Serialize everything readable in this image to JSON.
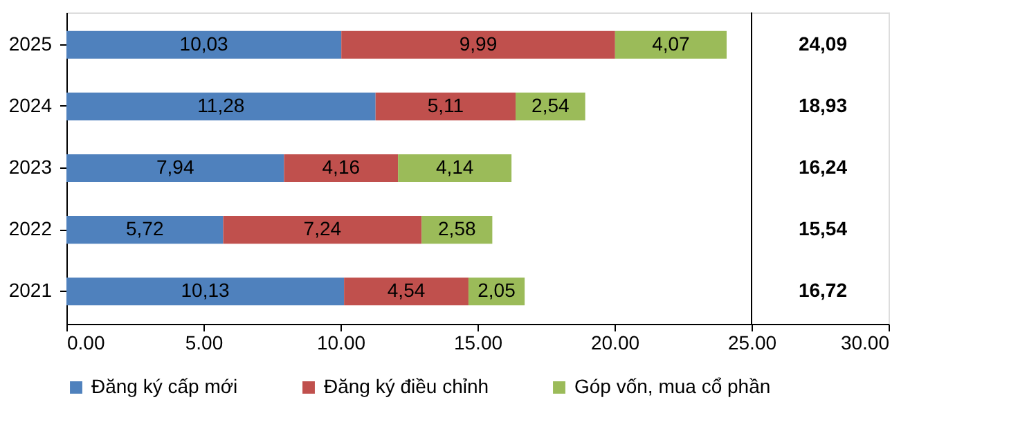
{
  "chart_data": {
    "type": "bar",
    "orientation": "horizontal",
    "stacked": true,
    "categories": [
      "2025",
      "2024",
      "2023",
      "2022",
      "2021"
    ],
    "series": [
      {
        "name": "Đăng  ký cấp mới",
        "color": "#4f81bd",
        "values": [
          10.03,
          11.28,
          7.94,
          5.72,
          10.13
        ],
        "value_labels": [
          "10,03",
          "11,28",
          "7,94",
          "5,72",
          "10,13"
        ]
      },
      {
        "name": "Đăng  ký điều chỉnh",
        "color": "#c0504d",
        "values": [
          9.99,
          5.11,
          4.16,
          7.24,
          4.54
        ],
        "value_labels": [
          "9,99",
          "5,11",
          "4,16",
          "7,24",
          "4,54"
        ]
      },
      {
        "name": "Góp vốn, mua cổ phần",
        "color": "#9bbb59",
        "values": [
          4.07,
          2.54,
          4.14,
          2.58,
          2.05
        ],
        "value_labels": [
          "4,07",
          "2,54",
          "4,14",
          "2,58",
          "2,05"
        ]
      }
    ],
    "annotations": [
      "24,09",
      "18,93",
      "16,24",
      "15,54",
      "16,72"
    ],
    "xlim": [
      0,
      30
    ],
    "xticks": [
      {
        "value": 0,
        "label": "0.00"
      },
      {
        "value": 5,
        "label": "5.00"
      },
      {
        "value": 10,
        "label": "10.00"
      },
      {
        "value": 15,
        "label": "15.00"
      },
      {
        "value": 20,
        "label": "20.00"
      },
      {
        "value": 25,
        "label": "25.00"
      },
      {
        "value": 30,
        "label": "30.00"
      }
    ],
    "ref_lines": [
      {
        "axis": "x",
        "value": 25,
        "label": null,
        "color": "#000000"
      }
    ],
    "grid": false,
    "legend": "bottom"
  }
}
